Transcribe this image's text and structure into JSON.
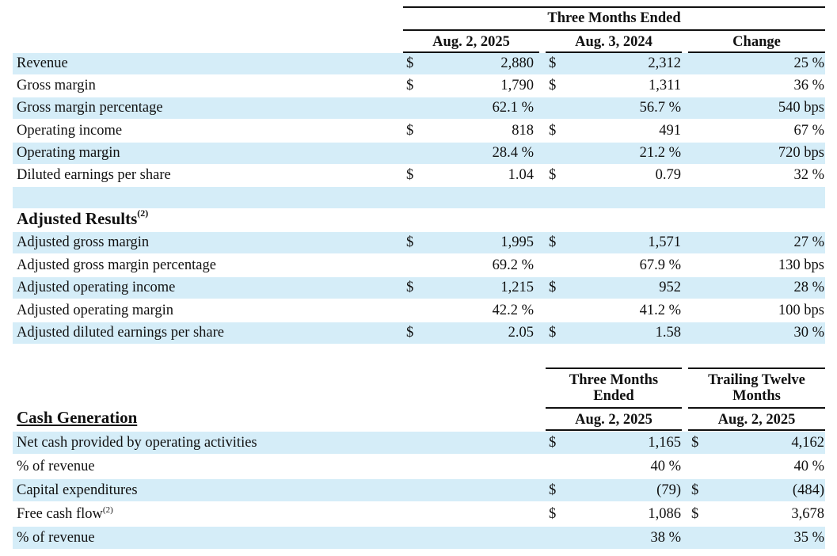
{
  "header": {
    "three_months_ended": "Three Months Ended",
    "col1": "Aug. 2, 2025",
    "col2": "Aug. 3, 2024",
    "col3": "Change"
  },
  "gaap_rows": [
    {
      "label": "Revenue",
      "d1": "$",
      "v1": "2,880",
      "d2": "$",
      "v2": "2,312",
      "chg": "25 %"
    },
    {
      "label": "Gross margin",
      "d1": "$",
      "v1": "1,790",
      "d2": "$",
      "v2": "1,311",
      "chg": "36 %"
    },
    {
      "label": "Gross margin percentage",
      "d1": "",
      "v1": "62.1 %",
      "d2": "",
      "v2": "56.7 %",
      "chg": "540 bps"
    },
    {
      "label": "Operating income",
      "d1": "$",
      "v1": "818",
      "d2": "$",
      "v2": "491",
      "chg": "67 %"
    },
    {
      "label": "Operating margin",
      "d1": "",
      "v1": "28.4 %",
      "d2": "",
      "v2": "21.2 %",
      "chg": "720 bps"
    },
    {
      "label": "Diluted earnings per share",
      "d1": "$",
      "v1": "1.04",
      "d2": "$",
      "v2": "0.79",
      "chg": "32 %"
    }
  ],
  "adjusted": {
    "title": "Adjusted Results",
    "footnote": "(2)",
    "rows": [
      {
        "label": "Adjusted gross margin",
        "d1": "$",
        "v1": "1,995",
        "d2": "$",
        "v2": "1,571",
        "chg": "27 %"
      },
      {
        "label": "Adjusted gross margin percentage",
        "d1": "",
        "v1": "69.2 %",
        "d2": "",
        "v2": "67.9 %",
        "chg": "130 bps"
      },
      {
        "label": "Adjusted operating income",
        "d1": "$",
        "v1": "1,215",
        "d2": "$",
        "v2": "952",
        "chg": "28 %"
      },
      {
        "label": "Adjusted operating margin",
        "d1": "",
        "v1": "42.2 %",
        "d2": "",
        "v2": "41.2 %",
        "chg": "100 bps"
      },
      {
        "label": "Adjusted diluted earnings per share",
        "d1": "$",
        "v1": "2.05",
        "d2": "$",
        "v2": "1.58",
        "chg": "30 %"
      }
    ]
  },
  "cash": {
    "title": "Cash Generation",
    "col_a_line1": "Three Months",
    "col_a_line2": "Ended",
    "col_a_date": "Aug. 2, 2025",
    "col_b_line1": "Trailing Twelve",
    "col_b_line2": "Months",
    "col_b_date": "Aug. 2, 2025",
    "rows": [
      {
        "label": "Net cash provided by operating activities",
        "fn": "",
        "da": "$",
        "va": "1,165",
        "db": "$",
        "vb": "4,162"
      },
      {
        "label": "% of revenue",
        "fn": "",
        "da": "",
        "va": "40 %",
        "db": "",
        "vb": "40 %"
      },
      {
        "label": "Capital expenditures",
        "fn": "",
        "da": "$",
        "va": "(79)",
        "db": "$",
        "vb": "(484)"
      },
      {
        "label": "Free cash flow",
        "fn": "(2)",
        "da": "$",
        "va": "1,086",
        "db": "$",
        "vb": "3,678"
      },
      {
        "label": "% of revenue",
        "fn": "",
        "da": "",
        "va": "38 %",
        "db": "",
        "vb": "35 %"
      }
    ]
  }
}
